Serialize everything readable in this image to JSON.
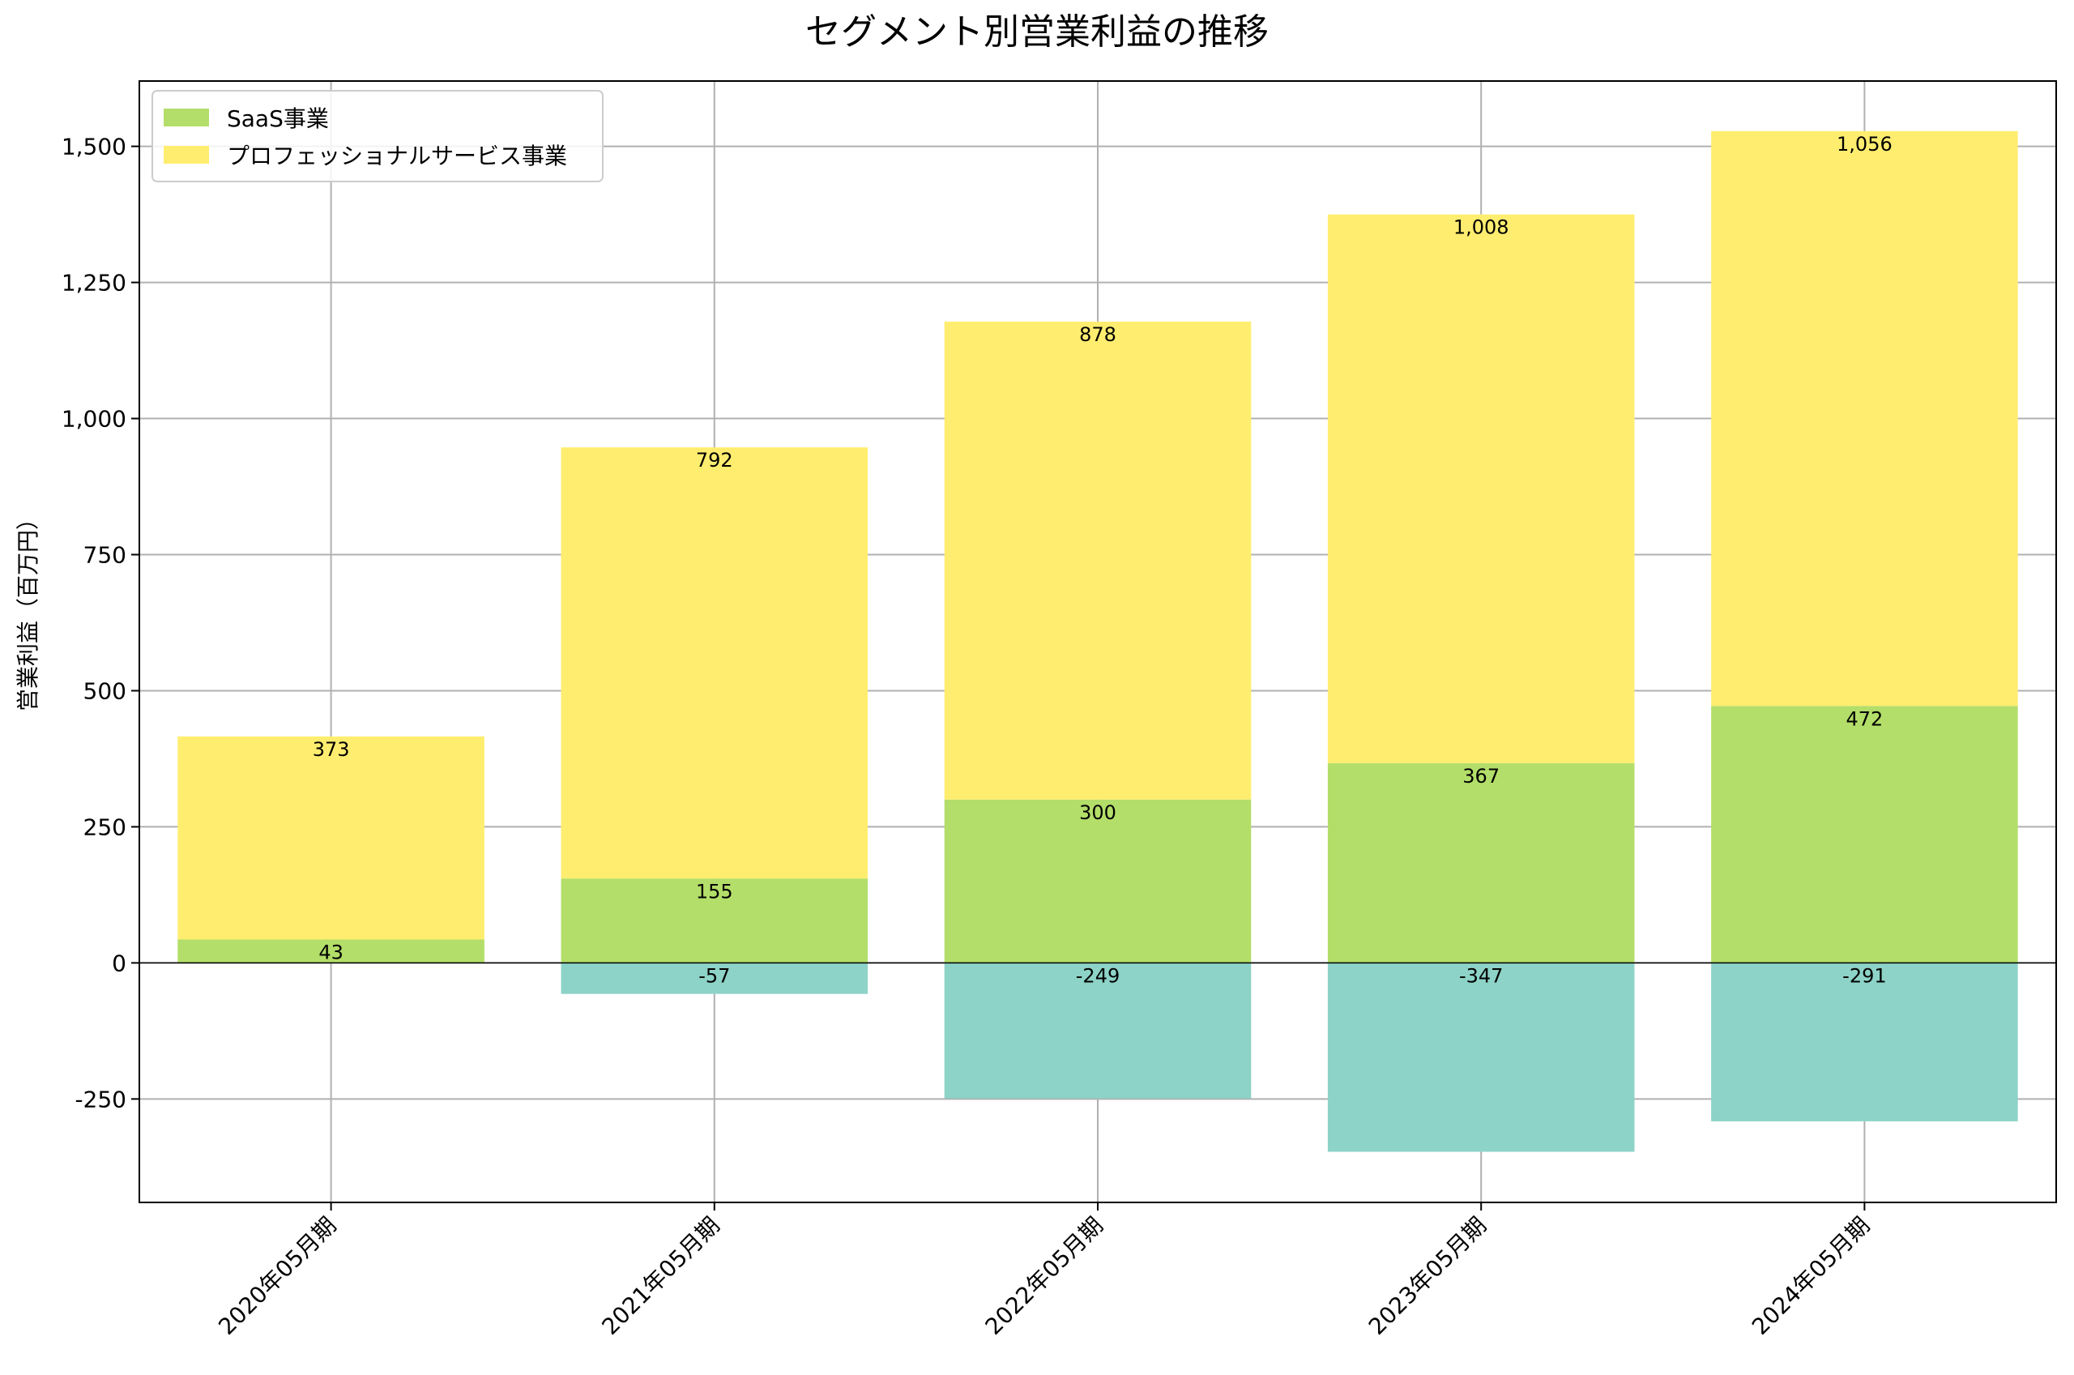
{
  "chart_data": {
    "type": "bar",
    "stacked": true,
    "title": "セグメント別営業利益の推移",
    "xlabel": "",
    "ylabel": "営業利益（百万円）",
    "categories": [
      "2020年05月期",
      "2021年05月期",
      "2022年05月期",
      "2023年05月期",
      "2024年05月期"
    ],
    "series": [
      {
        "name": "SaaS事業",
        "color": "#b3de69",
        "values": [
          43,
          155,
          300,
          367,
          472
        ],
        "labels": [
          "43",
          "155",
          "300",
          "367",
          "472"
        ]
      },
      {
        "name": "プロフェッショナルサービス事業",
        "color": "#ffed6f",
        "values": [
          373,
          792,
          878,
          1008,
          1056
        ],
        "labels": [
          "373",
          "792",
          "878",
          "1,008",
          "1,056"
        ]
      },
      {
        "color": "#8dd3c7",
        "values": [
          null,
          -57,
          -249,
          -347,
          -291
        ],
        "labels": [
          "",
          "-57",
          "-249",
          "-347",
          "-291"
        ]
      }
    ],
    "ylim": [
      -440,
      1620
    ],
    "yticks": [
      -250,
      0,
      250,
      500,
      750,
      1000,
      1250,
      1500
    ],
    "ytick_labels": [
      "-250",
      "0",
      "250",
      "500",
      "750",
      "1,000",
      "1,250",
      "1,500"
    ],
    "grid": true,
    "legend_position": "top-left"
  }
}
